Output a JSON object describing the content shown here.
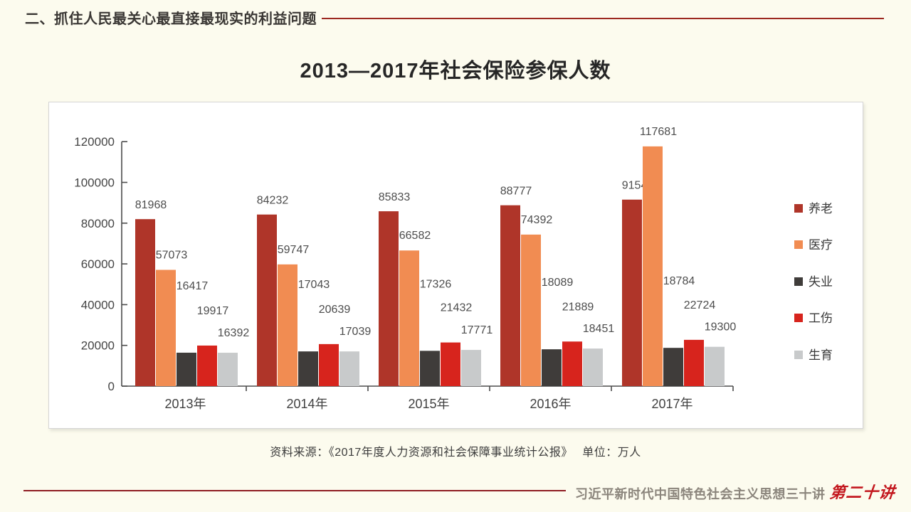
{
  "header": {
    "section_title": "二、抓住人民最关心最直接最现实的利益问题"
  },
  "chart": {
    "title": "2013—2017年社会保险参保人数"
  },
  "chart_data": {
    "type": "bar",
    "title": "2013—2017年社会保险参保人数",
    "unit": "万人",
    "categories": [
      "2013年",
      "2014年",
      "2015年",
      "2016年",
      "2017年"
    ],
    "series": [
      {
        "name": "养老",
        "color": "#AF3529",
        "values": [
          81968,
          84232,
          85833,
          88777,
          91548
        ]
      },
      {
        "name": "医疗",
        "color": "#F18C52",
        "values": [
          57073,
          59747,
          66582,
          74392,
          117681
        ]
      },
      {
        "name": "失业",
        "color": "#3F3C3A",
        "values": [
          16417,
          17043,
          17326,
          18089,
          18784
        ]
      },
      {
        "name": "工伤",
        "color": "#D7241D",
        "values": [
          19917,
          20639,
          21432,
          21889,
          22724
        ]
      },
      {
        "name": "生育",
        "color": "#C8CACB",
        "values": [
          16392,
          17039,
          17771,
          18451,
          19300
        ]
      }
    ],
    "ylim": [
      0,
      120000
    ],
    "ytick_step": 20000,
    "ytick_labels": [
      "0",
      "20000",
      "40000",
      "60000",
      "80000",
      "100000",
      "120000"
    ],
    "grid": false,
    "legend_position": "right",
    "data_labels_visible": true
  },
  "source": {
    "text": "资料来源：《2017年度人力资源和社会保障事业统计公报》　 单位：万人"
  },
  "footer": {
    "series_title": "习近平新时代中国特色社会主义思想三十讲",
    "lecture_label": "第二十讲"
  }
}
